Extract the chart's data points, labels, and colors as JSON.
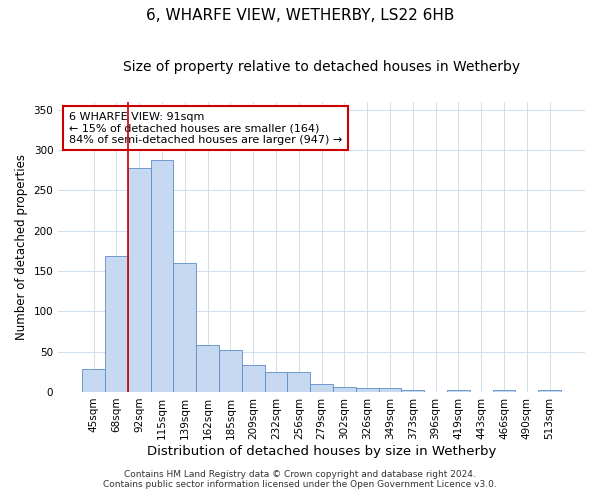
{
  "title": "6, WHARFE VIEW, WETHERBY, LS22 6HB",
  "subtitle": "Size of property relative to detached houses in Wetherby",
  "xlabel": "Distribution of detached houses by size in Wetherby",
  "ylabel": "Number of detached properties",
  "bar_labels": [
    "45sqm",
    "68sqm",
    "92sqm",
    "115sqm",
    "139sqm",
    "162sqm",
    "185sqm",
    "209sqm",
    "232sqm",
    "256sqm",
    "279sqm",
    "302sqm",
    "326sqm",
    "349sqm",
    "373sqm",
    "396sqm",
    "419sqm",
    "443sqm",
    "466sqm",
    "490sqm",
    "513sqm"
  ],
  "bar_values": [
    28,
    168,
    278,
    287,
    160,
    58,
    52,
    33,
    25,
    25,
    10,
    6,
    5,
    5,
    2,
    0,
    2,
    0,
    3,
    0,
    3
  ],
  "bar_color": "#c6d9f0",
  "bar_edge_color": "#5b8cc8",
  "vline_color": "#cc0000",
  "vline_x_index": 1.5,
  "annotation_text": "6 WHARFE VIEW: 91sqm\n← 15% of detached houses are smaller (164)\n84% of semi-detached houses are larger (947) →",
  "annotation_box_color": "#ffffff",
  "annotation_box_edge_color": "#cc0000",
  "ylim": [
    0,
    360
  ],
  "yticks": [
    0,
    50,
    100,
    150,
    200,
    250,
    300,
    350
  ],
  "bg_color": "#ffffff",
  "grid_color": "#c8d8ea",
  "footer_line1": "Contains HM Land Registry data © Crown copyright and database right 2024.",
  "footer_line2": "Contains public sector information licensed under the Open Government Licence v3.0.",
  "title_fontsize": 11,
  "subtitle_fontsize": 10,
  "xlabel_fontsize": 9.5,
  "ylabel_fontsize": 8.5,
  "tick_fontsize": 7.5,
  "annotation_fontsize": 8,
  "footer_fontsize": 6.5
}
